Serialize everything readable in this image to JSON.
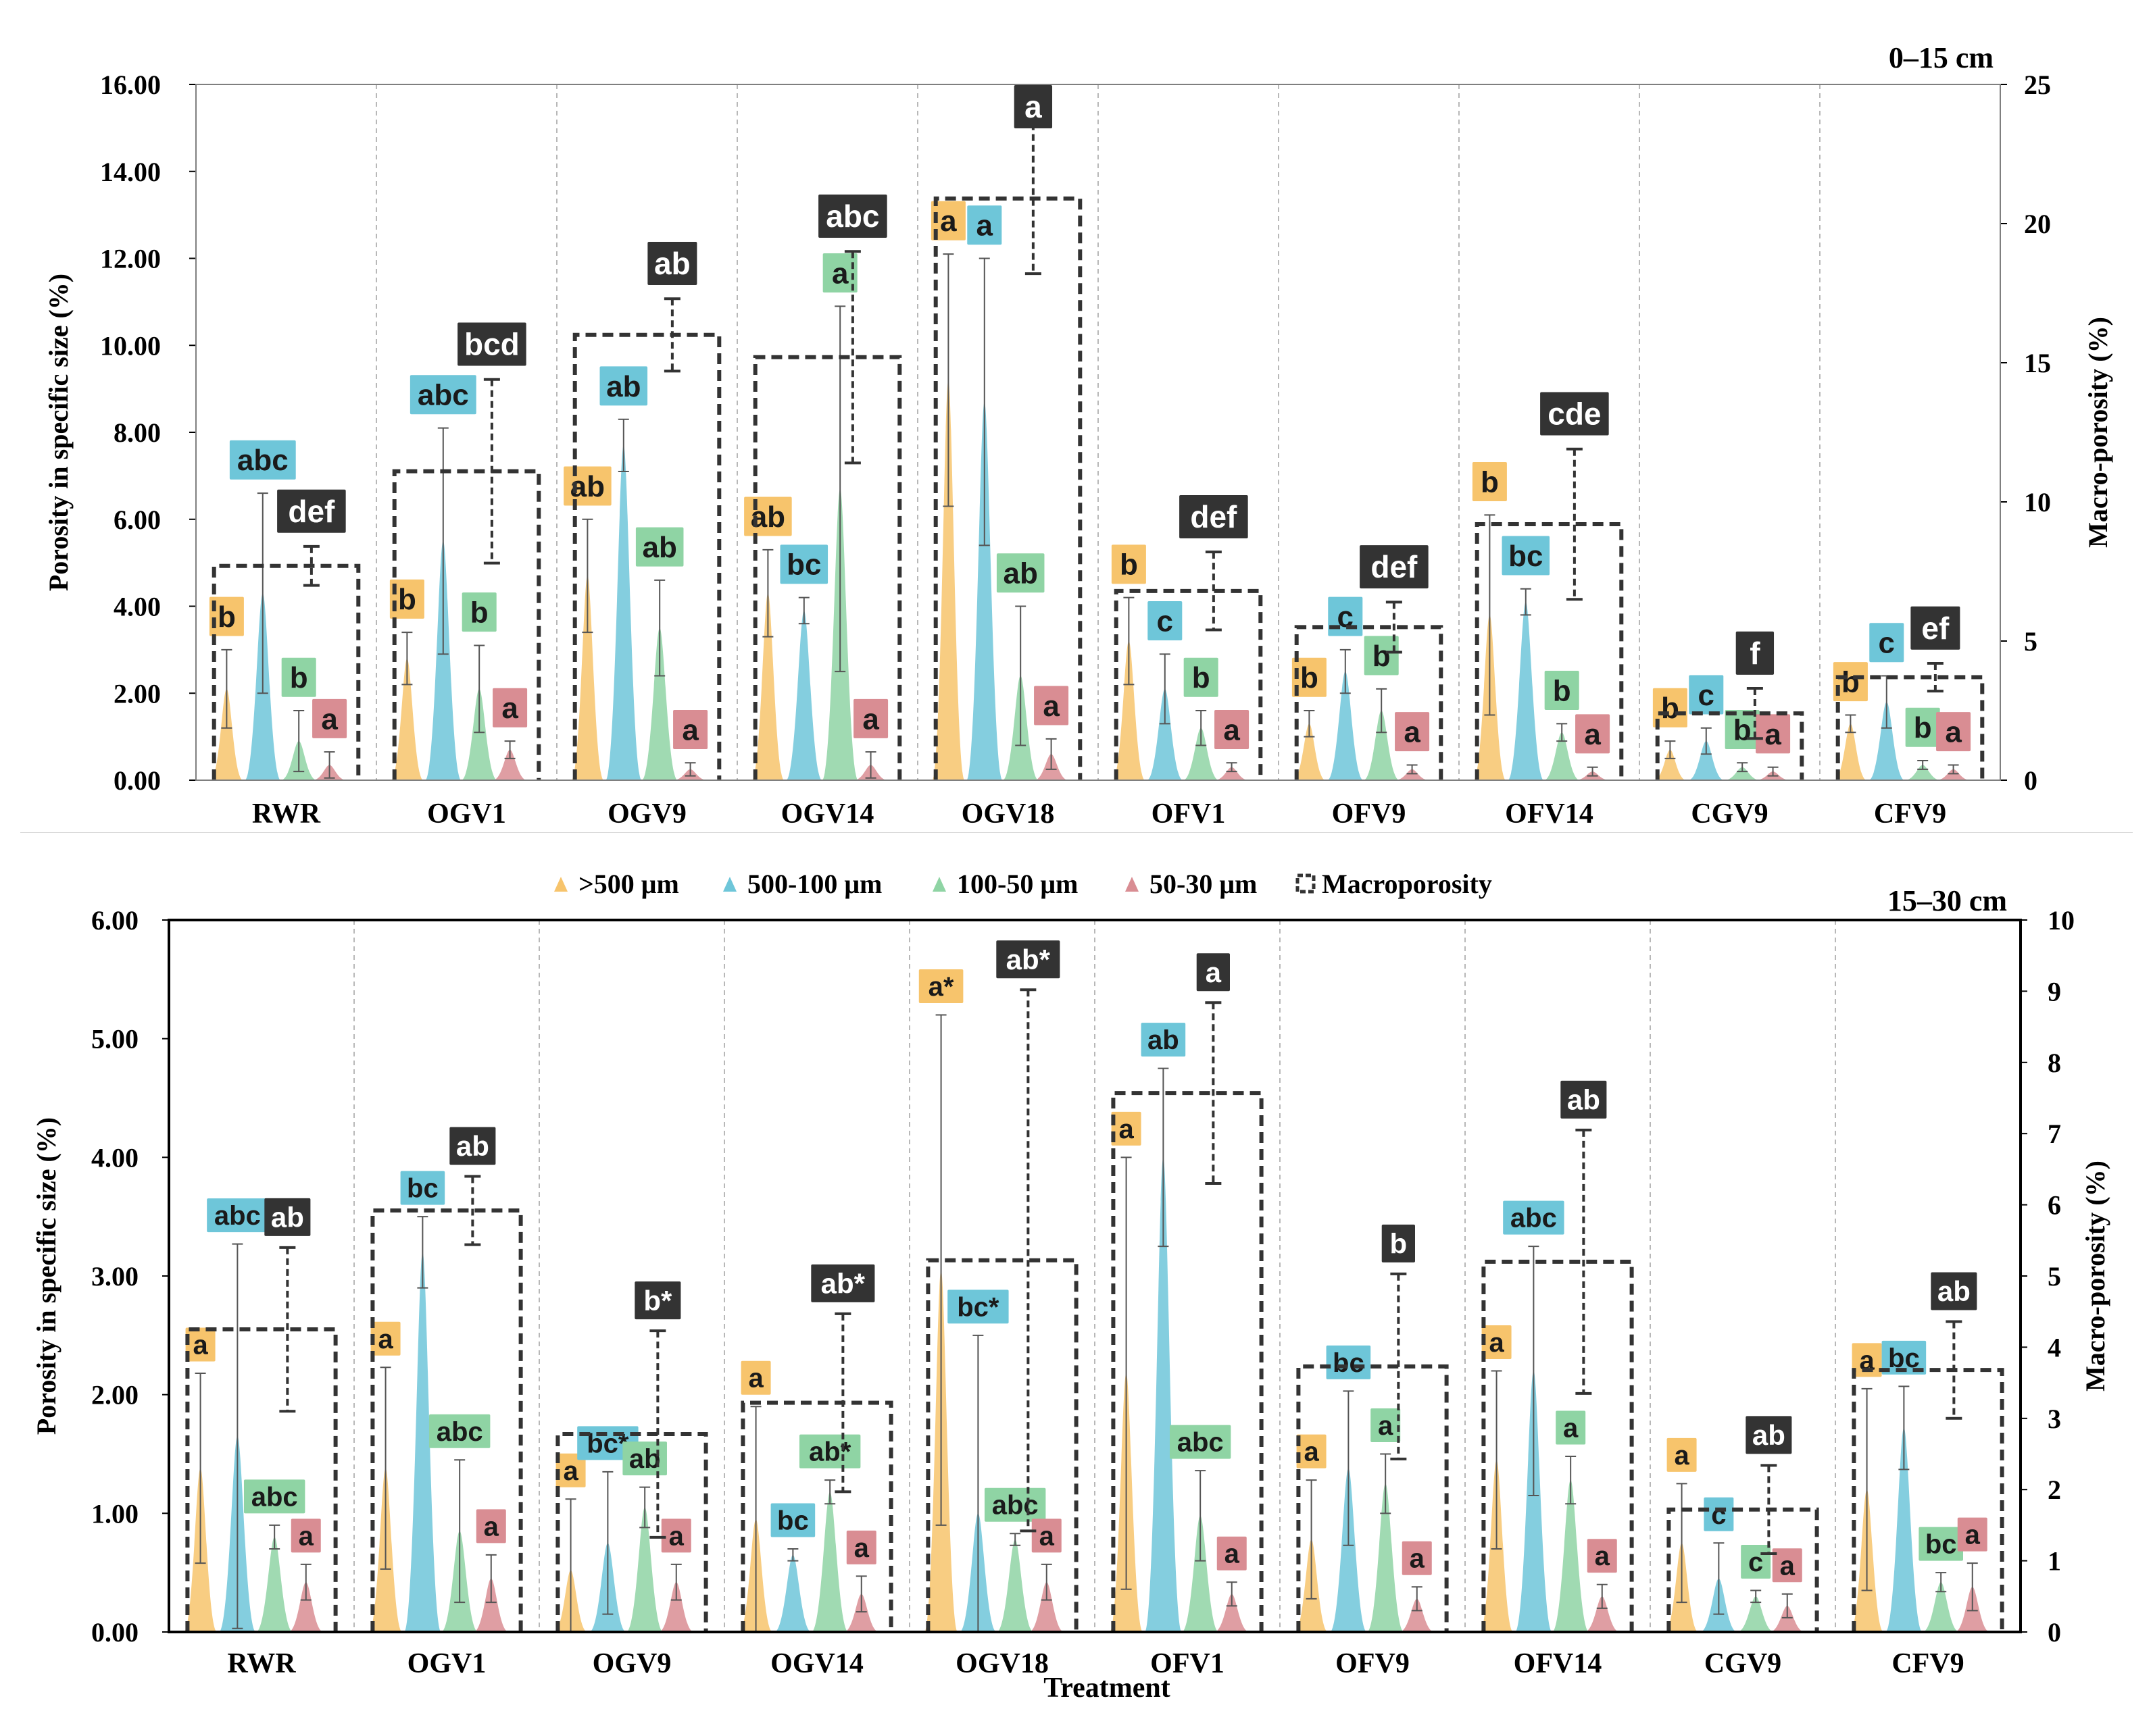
{
  "x_axis_title": "Treatment",
  "legend": {
    "items": [
      ">500 μm",
      "500-100 μm",
      "100-50 μm",
      "50-30 μm",
      "Macroporosity"
    ]
  },
  "colors": {
    "size_gt500": "#f7c46c",
    "size_500_100": "#6ec6d9",
    "size_100_50": "#8fd4a4",
    "size_50_30": "#d98d93",
    "macro_box": "#333333",
    "frame": "#000000"
  },
  "chart_data": [
    {
      "type": "area",
      "panel": "0–15 cm",
      "ylabel": "Porosity in specific size (%)",
      "y2label": "Macro-porosity (%)",
      "ylim": [
        0,
        16
      ],
      "y_ticks": [
        "0.00",
        "2.00",
        "4.00",
        "6.00",
        "8.00",
        "10.00",
        "12.00",
        "14.00",
        "16.00"
      ],
      "y2lim": [
        0,
        25
      ],
      "y2_ticks": [
        "0",
        "5",
        "10",
        "15",
        "20",
        "25"
      ],
      "categories": [
        "RWR",
        "OGV1",
        "OGV9",
        "OGV14",
        "OGV18",
        "OFV1",
        "OFV9",
        "OFV14",
        "CGV9",
        "CFV9"
      ],
      "series": [
        {
          "name": ">500 μm",
          "values": [
            2.1,
            2.8,
            4.7,
            4.3,
            9.2,
            3.2,
            1.3,
            3.8,
            0.7,
            1.3
          ],
          "err": [
            0.9,
            0.6,
            1.3,
            1.0,
            2.9,
            1.0,
            0.3,
            2.3,
            0.2,
            0.2
          ],
          "letters": [
            "b",
            "b",
            "ab",
            "ab",
            "a",
            "b",
            "b",
            "b",
            "b",
            "b"
          ]
        },
        {
          "name": "500-100 μm",
          "values": [
            4.3,
            5.5,
            7.7,
            3.9,
            8.7,
            2.1,
            2.5,
            4.1,
            0.9,
            1.8
          ],
          "err": [
            2.3,
            2.6,
            0.6,
            0.3,
            3.3,
            0.8,
            0.5,
            0.3,
            0.3,
            0.6
          ],
          "letters": [
            "abc",
            "abc",
            "ab",
            "bc",
            "a",
            "c",
            "c",
            "bc",
            "c",
            "c"
          ]
        },
        {
          "name": "100-50 μm",
          "values": [
            0.9,
            2.1,
            3.5,
            6.7,
            2.4,
            1.2,
            1.6,
            1.1,
            0.3,
            0.35
          ],
          "err": [
            0.7,
            1.0,
            1.1,
            4.2,
            1.6,
            0.4,
            0.5,
            0.2,
            0.1,
            0.1
          ],
          "letters": [
            "b",
            "b",
            "ab",
            "a",
            "ab",
            "b",
            "b",
            "b",
            "b",
            "b"
          ]
        },
        {
          "name": "50-30 μm",
          "values": [
            0.35,
            0.7,
            0.25,
            0.35,
            0.6,
            0.3,
            0.25,
            0.2,
            0.2,
            0.25
          ],
          "err": [
            0.3,
            0.2,
            0.15,
            0.3,
            0.35,
            0.1,
            0.1,
            0.1,
            0.1,
            0.1
          ],
          "letters": [
            "a",
            "a",
            "a",
            "a",
            "a",
            "a",
            "a",
            "a",
            "a",
            "a"
          ]
        },
        {
          "name": "Macroporosity",
          "axis": "right",
          "values": [
            7.7,
            11.1,
            16.0,
            15.2,
            20.9,
            6.8,
            5.5,
            9.2,
            2.4,
            3.7
          ],
          "err": [
            0.7,
            3.3,
            1.3,
            3.8,
            2.7,
            1.4,
            0.9,
            2.7,
            0.9,
            0.5
          ],
          "letters": [
            "def",
            "bcd",
            "ab",
            "abc",
            "a",
            "def",
            "def",
            "cde",
            "f",
            "ef"
          ]
        }
      ]
    },
    {
      "type": "area",
      "panel": "15–30 cm",
      "ylabel": "Porosity in specific size (%)",
      "y2label": "Macro-porosity (%)",
      "ylim": [
        0,
        6
      ],
      "y_ticks": [
        "0.00",
        "1.00",
        "2.00",
        "3.00",
        "4.00",
        "5.00",
        "6.00"
      ],
      "y2lim": [
        0,
        10
      ],
      "y2_ticks": [
        "0",
        "1",
        "2",
        "3",
        "4",
        "5",
        "6",
        "7",
        "8",
        "9",
        "10"
      ],
      "categories": [
        "RWR",
        "OGV1",
        "OGV9",
        "OGV14",
        "OGV18",
        "OFV1",
        "OFV9",
        "OFV14",
        "CGV9",
        "CFV9"
      ],
      "series": [
        {
          "name": ">500 μm",
          "values": [
            1.38,
            1.38,
            0.52,
            0.95,
            3.05,
            2.18,
            0.78,
            1.45,
            0.75,
            1.2
          ],
          "err": [
            0.8,
            0.85,
            0.6,
            0.95,
            2.15,
            1.82,
            0.5,
            0.75,
            0.5,
            0.85
          ],
          "letters": [
            "a",
            "a",
            "a",
            "a",
            "a*",
            "a",
            "a",
            "a",
            "a",
            "a"
          ]
        },
        {
          "name": "500-100 μm",
          "values": [
            1.65,
            3.2,
            0.75,
            0.65,
            1.0,
            4.0,
            1.38,
            2.2,
            0.45,
            1.72
          ],
          "err": [
            1.62,
            0.3,
            0.6,
            0.05,
            1.5,
            0.75,
            0.65,
            1.05,
            0.3,
            0.35
          ],
          "letters": [
            "abc",
            "bc",
            "bc*",
            "bc",
            "bc*",
            "ab",
            "bc",
            "abc",
            "c",
            "bc"
          ]
        },
        {
          "name": "100-50 μm",
          "values": [
            0.8,
            0.85,
            1.05,
            1.18,
            0.78,
            0.98,
            1.25,
            1.28,
            0.3,
            0.42
          ],
          "err": [
            0.1,
            0.6,
            0.17,
            0.1,
            0.05,
            0.38,
            0.25,
            0.2,
            0.05,
            0.08
          ],
          "letters": [
            "abc",
            "abc",
            "ab",
            "ab*",
            "abc",
            "abc",
            "a",
            "a",
            "c",
            "bc"
          ]
        },
        {
          "name": "50-30 μm",
          "values": [
            0.42,
            0.45,
            0.42,
            0.32,
            0.42,
            0.32,
            0.28,
            0.3,
            0.22,
            0.38
          ],
          "err": [
            0.15,
            0.2,
            0.15,
            0.15,
            0.15,
            0.1,
            0.1,
            0.1,
            0.1,
            0.2
          ],
          "letters": [
            "a",
            "a",
            "a",
            "a",
            "a",
            "a",
            "a",
            "a",
            "a",
            "a"
          ]
        },
        {
          "name": "Macroporosity",
          "axis": "right",
          "values": [
            4.25,
            5.92,
            2.78,
            3.22,
            5.22,
            7.57,
            3.73,
            5.2,
            1.72,
            3.68
          ],
          "err": [
            1.15,
            0.48,
            1.45,
            1.25,
            3.8,
            1.27,
            1.3,
            1.85,
            0.62,
            0.68
          ],
          "letters": [
            "ab",
            "ab",
            "b*",
            "ab*",
            "ab*",
            "a",
            "b",
            "ab",
            "ab",
            "ab"
          ]
        }
      ]
    }
  ]
}
